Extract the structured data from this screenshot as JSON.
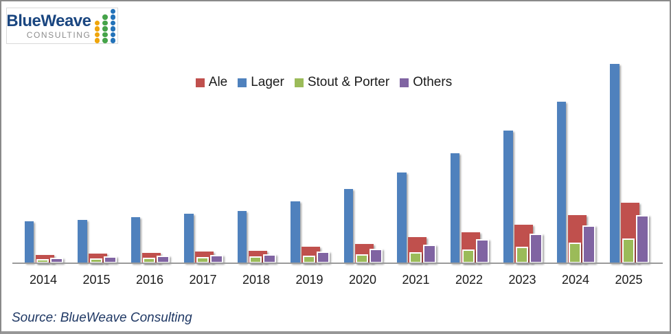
{
  "logo": {
    "brand": "BlueWeave",
    "subtitle": "CONSULTING",
    "brand_color": "#1A4680",
    "subtitle_color": "#8C8C8C",
    "mark_columns": [
      {
        "name": "logo-dots-orange-column",
        "color": "#EFA50B",
        "dots": 4
      },
      {
        "name": "logo-dots-green-column",
        "color": "#45A349",
        "dots": 5
      },
      {
        "name": "logo-dots-blue-column",
        "color": "#2272B9",
        "dots": 6
      }
    ]
  },
  "source": {
    "text": "Source: BlueWeave Consulting",
    "color": "#1F3864"
  },
  "axis": {
    "color": "#9A9A9A"
  },
  "chart_data": {
    "type": "bar",
    "title": "",
    "categories": [
      "2014",
      "2015",
      "2016",
      "2017",
      "2018",
      "2019",
      "2020",
      "2021",
      "2022",
      "2023",
      "2024",
      "2025"
    ],
    "series": [
      {
        "name": "Ale",
        "color": "#C0504D",
        "values": [
          4.3,
          4.7,
          5.2,
          5.7,
          6.2,
          8.2,
          9.6,
          13.0,
          15.5,
          19.2,
          24.0,
          30.2
        ]
      },
      {
        "name": "Lager",
        "color": "#4F81BD",
        "values": [
          21.0,
          21.8,
          23.0,
          24.8,
          26.1,
          31.2,
          37.4,
          45.4,
          55.2,
          66.7,
          81.1,
          100.0
        ]
      },
      {
        "name": "Stout & Porter",
        "color": "#9BBB59",
        "values": [
          2.2,
          2.4,
          2.7,
          3.0,
          3.3,
          3.7,
          4.5,
          5.4,
          7.0,
          8.2,
          10.2,
          12.5
        ]
      },
      {
        "name": "Others",
        "color": "#8064A2",
        "values": [
          2.9,
          3.3,
          3.7,
          4.2,
          4.6,
          5.8,
          7.2,
          9.4,
          11.9,
          14.9,
          18.8,
          24.0
        ]
      }
    ],
    "value_axis": {
      "visible": false,
      "min": 0,
      "max": 100,
      "note": "No numeric value axis shown in the chart; values are relative estimates scaled so 2025 Lager = 100."
    },
    "xlabel": "",
    "ylabel": "",
    "grid": false,
    "legend_position": "top"
  }
}
